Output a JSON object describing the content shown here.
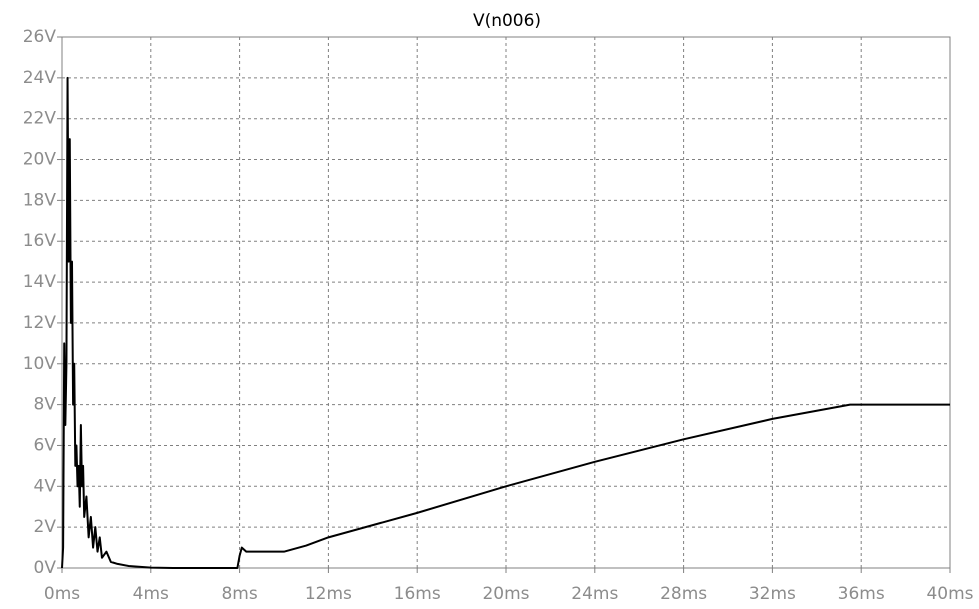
{
  "chart_data": {
    "type": "line",
    "title": "V(n006)",
    "x": [
      0,
      0.05,
      0.1,
      0.15,
      0.2,
      0.25,
      0.3,
      0.35,
      0.4,
      0.45,
      0.5,
      0.55,
      0.6,
      0.65,
      0.7,
      0.75,
      0.8,
      0.85,
      0.9,
      0.95,
      1.0,
      1.1,
      1.2,
      1.3,
      1.4,
      1.5,
      1.6,
      1.7,
      1.8,
      2.0,
      2.2,
      2.5,
      3,
      4,
      5,
      7.9,
      8.0,
      8.1,
      8.3,
      9,
      10,
      11,
      12,
      16,
      20,
      24,
      28,
      32,
      35.5,
      40
    ],
    "values": [
      0,
      1,
      11,
      7,
      10,
      24,
      15,
      21,
      12,
      15,
      8,
      10,
      5,
      6,
      4,
      5,
      3,
      7,
      4,
      5,
      2.5,
      3.5,
      1.5,
      2.5,
      1,
      2,
      0.8,
      1.5,
      0.5,
      0.8,
      0.3,
      0.2,
      0.1,
      0.02,
      0,
      0,
      0.6,
      1.0,
      0.8,
      0.8,
      0.8,
      1.1,
      1.5,
      2.7,
      4.0,
      5.2,
      6.3,
      7.3,
      8.0,
      8.0
    ],
    "color": "#000000",
    "xlim": [
      0,
      40
    ],
    "xticks": [
      {
        "value": 0,
        "label": "0ms"
      },
      {
        "value": 4,
        "label": "4ms"
      },
      {
        "value": 8,
        "label": "8ms"
      },
      {
        "value": 12,
        "label": "12ms"
      },
      {
        "value": 16,
        "label": "16ms"
      },
      {
        "value": 20,
        "label": "20ms"
      },
      {
        "value": 24,
        "label": "24ms"
      },
      {
        "value": 28,
        "label": "28ms"
      },
      {
        "value": 32,
        "label": "32ms"
      },
      {
        "value": 36,
        "label": "36ms"
      },
      {
        "value": 40,
        "label": "40ms"
      }
    ],
    "ylim": [
      0,
      26
    ],
    "yticks": [
      {
        "value": 0,
        "label": "0V"
      },
      {
        "value": 2,
        "label": "2V"
      },
      {
        "value": 4,
        "label": "4V"
      },
      {
        "value": 6,
        "label": "6V"
      },
      {
        "value": 8,
        "label": "8V"
      },
      {
        "value": 10,
        "label": "10V"
      },
      {
        "value": 12,
        "label": "12V"
      },
      {
        "value": 14,
        "label": "14V"
      },
      {
        "value": 16,
        "label": "16V"
      },
      {
        "value": 18,
        "label": "18V"
      },
      {
        "value": 20,
        "label": "20V"
      },
      {
        "value": 22,
        "label": "22V"
      },
      {
        "value": 24,
        "label": "24V"
      },
      {
        "value": 26,
        "label": "26V"
      }
    ],
    "grid": true
  }
}
